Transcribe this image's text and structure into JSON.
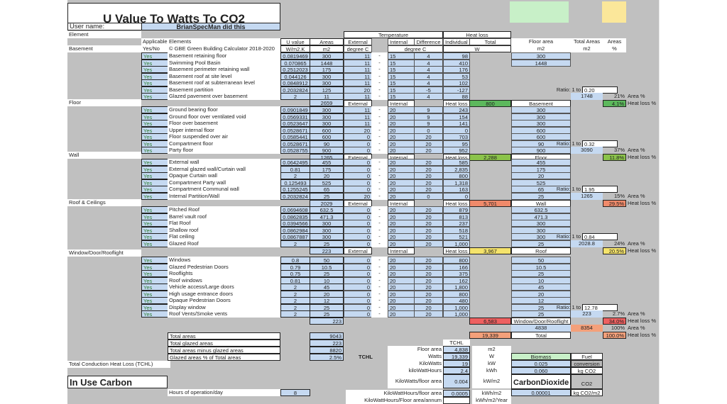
{
  "title": "U Value To Watts To CO2",
  "user": {
    "label": "User name:",
    "value": "BrianSpecMan did this"
  },
  "indicators": {
    "yes_cell": "Yes",
    "question_cell": "?"
  },
  "headers": {
    "element": "Element",
    "applicable": "Applicable",
    "yes_no": "Yes/No",
    "elements": "Elements",
    "copyright": "© GBE Green Building Calculator 2018-2020",
    "u_value": "U value",
    "u_unit": "W/m2.K",
    "areas": "Areas",
    "areas_unit": "m2",
    "temperature": "Temperature",
    "external": "External",
    "internal": "Internal",
    "difference": "Difference",
    "deg_c": "degree C",
    "heat_loss": "Heat loss",
    "individual": "Individual",
    "total": "Total",
    "w": "W",
    "floor_area": "Floor area",
    "total_areas": "Total Areas",
    "areas_pct": "Areas",
    "m2": "m2",
    "pct": "%"
  },
  "labels": {
    "external": "External",
    "internal": "Internal",
    "heat_loss": "Heat loss",
    "ratio": "Ratio: 1 to",
    "area_pct": "Area %",
    "heat_loss_pct": "Heat loss %",
    "dash": "-"
  },
  "sections": [
    {
      "name": "Basement",
      "rows": [
        {
          "app": "Yes",
          "el": "Basement retaining floor",
          "u": "0.0819469",
          "a": "300",
          "ext": "11",
          "int": "15",
          "diff": "4",
          "hl": "98",
          "fa": "300"
        },
        {
          "app": "Yes",
          "el": "Swimming Pool Basin",
          "u": "0.070865",
          "a": "1448",
          "ext": "11",
          "int": "15",
          "diff": "4",
          "hl": "410",
          "fa": "1448"
        },
        {
          "app": "Yes",
          "el": "Basement perimeter retaining wall",
          "u": "0.2512023",
          "a": "175",
          "ext": "11",
          "int": "15",
          "diff": "4",
          "hl": "176",
          "fa": ""
        },
        {
          "app": "Yes",
          "el": "Basement roof at site level",
          "u": "0.044126",
          "a": "300",
          "ext": "11",
          "int": "15",
          "diff": "4",
          "hl": "53",
          "fa": ""
        },
        {
          "app": "Yes",
          "el": "Basement roof at subterranean level",
          "u": "0.0848912",
          "a": "300",
          "ext": "11",
          "int": "15",
          "diff": "4",
          "hl": "102",
          "fa": ""
        },
        {
          "app": "Yes",
          "el": "Basement partition",
          "u": "0.2032824",
          "a": "125",
          "ext": "20",
          "int": "15",
          "diff": "-5",
          "hl": "-127",
          "fa": ""
        },
        {
          "app": "Yes",
          "el": "Glazed pavement over basement",
          "u": "2",
          "a": "11",
          "ext": "11",
          "int": "15",
          "diff": "4",
          "hl": "88",
          "fa": ""
        }
      ],
      "ratio": "0.20",
      "total_area": "1748",
      "area_pct": "21%",
      "section_area": "2659",
      "heat_loss_total": "800",
      "summary_label": "Basement",
      "heat_loss_pct": "4.1%"
    },
    {
      "name": "Floor",
      "rows": [
        {
          "app": "Yes",
          "el": "Ground bearing floor",
          "u": "0.0901849",
          "a": "300",
          "ext": "11",
          "int": "20",
          "diff": "9",
          "hl": "243",
          "fa": "300"
        },
        {
          "app": "Yes",
          "el": "Ground floor over ventilated void",
          "u": "0.0569331",
          "a": "300",
          "ext": "11",
          "int": "20",
          "diff": "9",
          "hl": "154",
          "fa": "300"
        },
        {
          "app": "Yes",
          "el": "Floor over basement",
          "u": "0.0523647",
          "a": "300",
          "ext": "11",
          "int": "20",
          "diff": "9",
          "hl": "141",
          "fa": "300"
        },
        {
          "app": "Yes",
          "el": "Upper internal floor",
          "u": "0.0528671",
          "a": "600",
          "ext": "20",
          "int": "20",
          "diff": "0",
          "hl": "0",
          "fa": "600"
        },
        {
          "app": "Yes",
          "el": "Floor suspended over air",
          "u": "0.0585441",
          "a": "600",
          "ext": "0",
          "int": "20",
          "diff": "20",
          "hl": "703",
          "fa": "600"
        },
        {
          "app": "Yes",
          "el": "Compartment floor",
          "u": "0.0528671",
          "a": "90",
          "ext": "0",
          "int": "20",
          "diff": "20",
          "hl": "95",
          "fa": "90"
        },
        {
          "app": "Yes",
          "el": "Party floor",
          "u": "0.0528755",
          "a": "900",
          "ext": "0",
          "int": "20",
          "diff": "20",
          "hl": "952",
          "fa": "900"
        }
      ],
      "ratio": "0.32",
      "total_area": "3090",
      "area_pct": "37%",
      "section_area": "3090",
      "heat_loss_total": "2,288",
      "summary_label": "Floor",
      "heat_loss_pct": "11.8%"
    },
    {
      "name": "Wall",
      "rows": [
        {
          "app": "Yes",
          "el": "External wall",
          "u": "0.0642495",
          "a": "455",
          "ext": "0",
          "int": "20",
          "diff": "20",
          "hl": "585",
          "fa": "455"
        },
        {
          "app": "Yes",
          "el": "External glazed wall/Curtain wall",
          "u": "0.81",
          "a": "175",
          "ext": "0",
          "int": "20",
          "diff": "20",
          "hl": "2,835",
          "fa": "175"
        },
        {
          "app": "Yes",
          "el": "Opaque Curtain wall",
          "u": "2",
          "a": "20",
          "ext": "0",
          "int": "20",
          "diff": "20",
          "hl": "800",
          "fa": "20"
        },
        {
          "app": "Yes",
          "el": "Compartment Party wall",
          "u": "0.125493",
          "a": "525",
          "ext": "0",
          "int": "20",
          "diff": "20",
          "hl": "1,318",
          "fa": "525"
        },
        {
          "app": "Yes",
          "el": "Compartment Communal wall",
          "u": "0.1255245",
          "a": "65",
          "ext": "0",
          "int": "20",
          "diff": "20",
          "hl": "163",
          "fa": "65"
        },
        {
          "app": "Yes",
          "el": "Internal Partition/Wall",
          "u": "0.2032824",
          "a": "25",
          "ext": "20",
          "int": "20",
          "diff": "0",
          "hl": "0",
          "fa": "25"
        }
      ],
      "ratio": "1.95",
      "total_area": "1265",
      "area_pct": "15%",
      "section_area": "1265",
      "heat_loss_total": "5,701",
      "summary_label": "Wall",
      "heat_loss_pct": "29.5%"
    },
    {
      "name": "Roof & Ceilings",
      "rows": [
        {
          "app": "Yes",
          "el": "Pitched Roof",
          "u": "0.0694608",
          "a": "632.5",
          "ext": "0",
          "int": "20",
          "diff": "20",
          "hl": "879",
          "fa": "632.5"
        },
        {
          "app": "Yes",
          "el": "Barrel vault roof",
          "u": "0.0862835",
          "a": "471.3",
          "ext": "0",
          "int": "20",
          "diff": "20",
          "hl": "813",
          "fa": "471.3"
        },
        {
          "app": "Yes",
          "el": "Flat Roof",
          "u": "0.0394566",
          "a": "300",
          "ext": "0",
          "int": "20",
          "diff": "20",
          "hl": "237",
          "fa": "300"
        },
        {
          "app": "Yes",
          "el": "Shallow roof",
          "u": "0.0862984",
          "a": "300",
          "ext": "0",
          "int": "20",
          "diff": "20",
          "hl": "518",
          "fa": "300"
        },
        {
          "app": "Yes",
          "el": "Flat ceiling",
          "u": "0.0867887",
          "a": "300",
          "ext": "0",
          "int": "20",
          "diff": "20",
          "hl": "521",
          "fa": "300"
        },
        {
          "app": "Yes",
          "el": "Glazed Roof",
          "u": "2",
          "a": "25",
          "ext": "0",
          "int": "20",
          "diff": "20",
          "hl": "1,000",
          "fa": "25"
        }
      ],
      "ratio": "0.84",
      "total_area": "2028.8",
      "area_pct": "24%",
      "section_area": "2029",
      "heat_loss_total": "3,967",
      "summary_label": "Roof",
      "heat_loss_pct": "20.5%"
    },
    {
      "name": "Window/Door/Rooflight",
      "rows": [
        {
          "app": "Yes",
          "el": "Windows",
          "u": "0.8",
          "a": "50",
          "ext": "0",
          "int": "20",
          "diff": "20",
          "hl": "800",
          "fa": "50"
        },
        {
          "app": "Yes",
          "el": "Glazed Pedestrian Doors",
          "u": "0.79",
          "a": "10.5",
          "ext": "0",
          "int": "20",
          "diff": "20",
          "hl": "166",
          "fa": "10.5"
        },
        {
          "app": "Yes",
          "el": "Rooflights",
          "u": "0.75",
          "a": "25",
          "ext": "0",
          "int": "20",
          "diff": "20",
          "hl": "375",
          "fa": "25"
        },
        {
          "app": "Yes",
          "el": "Roof windows",
          "u": "0.81",
          "a": "10",
          "ext": "0",
          "int": "20",
          "diff": "20",
          "hl": "162",
          "fa": "10"
        },
        {
          "app": "Yes",
          "el": "Vehicle access/Large doors",
          "u": "2",
          "a": "45",
          "ext": "0",
          "int": "20",
          "diff": "20",
          "hl": "1,800",
          "fa": "45"
        },
        {
          "app": "Yes",
          "el": "High usage entrance doors",
          "u": "2",
          "a": "20",
          "ext": "0",
          "int": "20",
          "diff": "20",
          "hl": "800",
          "fa": "20"
        },
        {
          "app": "Yes",
          "el": "Opaque Pedestrian Doors",
          "u": "2",
          "a": "12",
          "ext": "0",
          "int": "20",
          "diff": "20",
          "hl": "480",
          "fa": "12"
        },
        {
          "app": "Yes",
          "el": "Display window",
          "u": "2",
          "a": "25",
          "ext": "0",
          "int": "20",
          "diff": "20",
          "hl": "1,000",
          "fa": "25"
        },
        {
          "app": "Yes",
          "el": "Roof Vents/Smoke vents",
          "u": "2",
          "a": "25",
          "ext": "0",
          "int": "20",
          "diff": "20",
          "hl": "1,000",
          "fa": "25"
        }
      ],
      "ratio": "12.78",
      "total_area": "223",
      "area_pct": "2.7%",
      "section_area": "223",
      "heat_loss_total": "6,583",
      "summary_label": "Window/Door/Rooflight",
      "heat_loss_pct": "34.0%"
    }
  ],
  "grand_totals": {
    "floor_area": "4838",
    "total_areas": "8354",
    "area_pct": "100%",
    "heat_loss": "19,339",
    "label": "Total",
    "heat_loss_pct": "100.0%"
  },
  "area_summary": [
    {
      "label": "Total areas",
      "value": "9043"
    },
    {
      "label": "Total glazed areas",
      "value": "223"
    },
    {
      "label": "Total areas minus glazed areas",
      "value": "8820"
    },
    {
      "label": "Glazed areas % of Total areas",
      "value": "2.5%"
    }
  ],
  "tchl_label": "Total Conduction Heat Loss  (TCHL)",
  "in_use_carbon": "In Use Carbon",
  "hours": {
    "label": "Hours of operation/day",
    "value": "8"
  },
  "tchl": {
    "header": "TCHL",
    "side_label": "TCHL",
    "rows": [
      {
        "label": "Floor area",
        "value": "4,838",
        "unit": "m2"
      },
      {
        "label": "Watts",
        "value": "19,339",
        "unit": "W"
      },
      {
        "label": "KiloWatts",
        "value": "19",
        "unit": "kW"
      },
      {
        "label": "kiloWattHours",
        "value": "2.4",
        "unit": "kWh"
      },
      {
        "label": "KiloWatts/floor area",
        "value": "0.004",
        "unit": "kW/m2"
      },
      {
        "label": "KiloWattHours/floor area",
        "value": "0.0005",
        "unit": "kWh/m2"
      },
      {
        "label": "KiloWattHours/Floor area/annum",
        "value": "",
        "unit": "kWh/m2/Year"
      }
    ]
  },
  "fuel": {
    "fuel_name": "Biomass",
    "fuel_label": "Fuel",
    "conversion_label": "conversion",
    "factor": "0.025",
    "kg_co2": "0.060",
    "kg_co2_unit": "kg CO2",
    "co2_title": "CarbonDioxide",
    "co2_label": "CO2",
    "co2_per_m2": "0.00001",
    "co2_per_m2_unit": "kg CO2/m2"
  },
  "colors": {
    "sheet_bg": "#c0c0c0",
    "input_blue": "#c5d9f1",
    "yes_green_text": "#2e7d32",
    "basement_green": "#5cb85c",
    "floor_green": "#8bc34a",
    "wall_orange": "#f08a6a",
    "roof_yellow": "#f5e36b",
    "window_red": "#ee6060",
    "total_orange": "#f4a07a"
  }
}
